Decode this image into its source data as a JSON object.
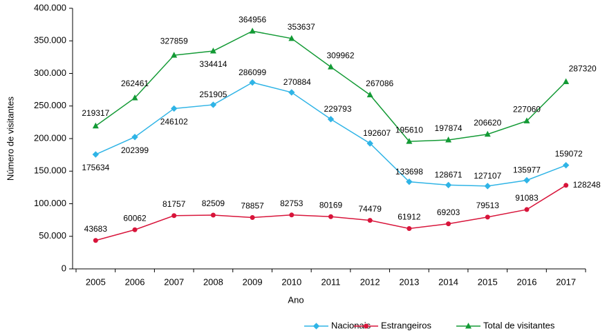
{
  "chart_data": {
    "type": "line",
    "y_label": "Número de visitantes",
    "x_label": "Ano",
    "categories": [
      "2005",
      "2006",
      "2007",
      "2008",
      "2009",
      "2010",
      "2011",
      "2012",
      "2013",
      "2014",
      "2015",
      "2016",
      "2017"
    ],
    "series": [
      {
        "name": "Nacionais",
        "color": "#2fb4e6",
        "marker": "diamond",
        "values": [
          175634,
          202399,
          246102,
          251905,
          286099,
          270884,
          229793,
          192607,
          133698,
          128671,
          127107,
          135977,
          159072
        ]
      },
      {
        "name": "Estrangeiros",
        "color": "#d8143a",
        "marker": "circle",
        "values": [
          43683,
          60062,
          81757,
          82509,
          78857,
          82753,
          80169,
          74479,
          61912,
          69203,
          79513,
          91083,
          128248
        ]
      },
      {
        "name": "Total de visitantes",
        "color": "#139a35",
        "marker": "triangle",
        "values": [
          219317,
          262461,
          327859,
          334414,
          364956,
          353637,
          309962,
          267086,
          195610,
          197874,
          206620,
          227060,
          287320
        ]
      }
    ],
    "ylim": [
      0,
      400000
    ],
    "yticks": [
      0,
      {
        "value": 50000,
        "label": "50.000"
      },
      {
        "value": 100000,
        "label": "100.000"
      },
      {
        "value": 150000,
        "label": "150.000"
      },
      {
        "value": 200000,
        "label": "200.000"
      },
      {
        "value": 250000,
        "label": "250.000"
      },
      {
        "value": 300000,
        "label": "300.000"
      },
      {
        "value": 350000,
        "label": "350.000"
      },
      {
        "value": 400000,
        "label": "400.000"
      }
    ],
    "legend": "bottom-right",
    "grid": false
  }
}
